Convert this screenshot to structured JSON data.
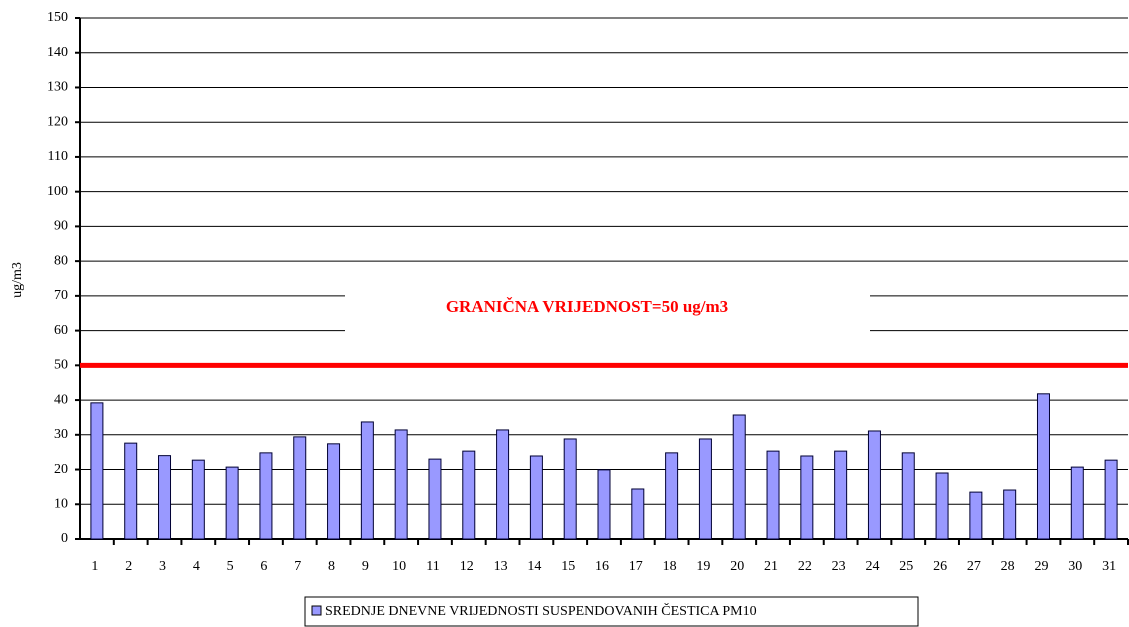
{
  "chart_data": {
    "type": "bar",
    "y_label": "ug/m3",
    "categories": [
      "1",
      "2",
      "3",
      "4",
      "5",
      "6",
      "7",
      "8",
      "9",
      "10",
      "11",
      "12",
      "13",
      "14",
      "15",
      "16",
      "17",
      "18",
      "19",
      "20",
      "21",
      "22",
      "23",
      "24",
      "25",
      "26",
      "27",
      "28",
      "29",
      "30",
      "31"
    ],
    "series": [
      {
        "name": "SREDNJE DNEVNE VRIJEDNOSTI SUSPENDOVANIH ČESTICA PM10",
        "color": "#9999ff",
        "values": [
          39.2,
          27.6,
          24,
          22.7,
          20.7,
          24.8,
          29.4,
          27.4,
          33.7,
          31.4,
          23,
          25.3,
          31.4,
          23.9,
          28.8,
          19.9,
          14.4,
          24.8,
          28.8,
          35.7,
          25.3,
          23.9,
          25.3,
          31.1,
          24.8,
          19,
          13.5,
          14.1,
          41.8,
          20.7,
          22.7
        ]
      }
    ],
    "threshold": {
      "value": 50,
      "label": "GRANIČNA VRIJEDNOST=50 ug/m3",
      "color": "#ff0000"
    },
    "ylim": [
      0,
      150
    ],
    "yticks": [
      0,
      10,
      20,
      30,
      40,
      50,
      60,
      70,
      80,
      90,
      100,
      110,
      120,
      130,
      140,
      150
    ],
    "grid": true,
    "legend": "bottom"
  }
}
